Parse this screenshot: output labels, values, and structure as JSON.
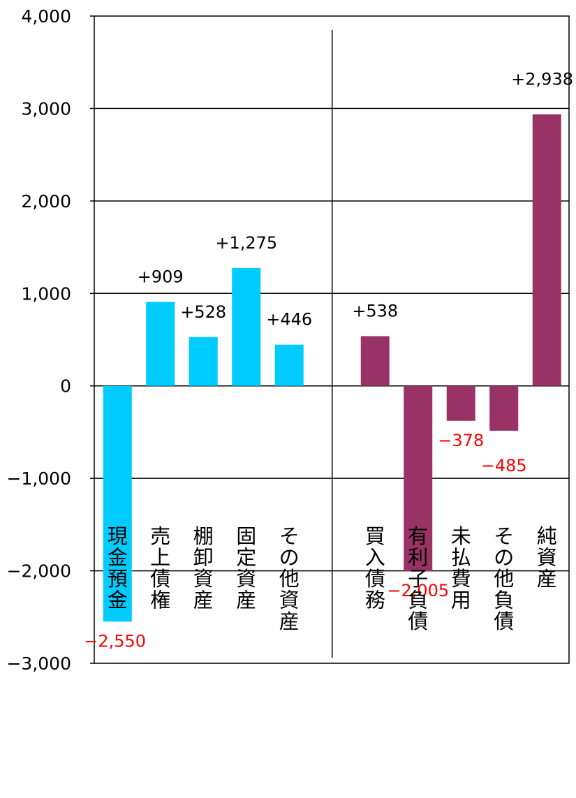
{
  "chart_data": {
    "type": "bar",
    "title": "",
    "xlabel": "",
    "ylabel": "",
    "ylim": [
      -3000,
      4000
    ],
    "yticks": [
      {
        "value": 4000,
        "label": "4,000"
      },
      {
        "value": 3000,
        "label": "3,000"
      },
      {
        "value": 2000,
        "label": "2,000"
      },
      {
        "value": 1000,
        "label": "1,000"
      },
      {
        "value": 0,
        "label": "0"
      },
      {
        "value": -1000,
        "label": "−1,000"
      },
      {
        "value": -2000,
        "label": "−2,000"
      },
      {
        "value": -3000,
        "label": "−3,000"
      }
    ],
    "grid": true,
    "legend": "none",
    "colors": {
      "assets": "#00CCFF",
      "liabilities": "#993366",
      "positive_label": "#000000",
      "negative_label": "#FF0000"
    },
    "categories": [
      "現金預金",
      "売上債権",
      "棚卸資産",
      "固定資産",
      "その他資産",
      "",
      "買入債務",
      "有利子負債",
      "未払費用",
      "その他負債",
      "純資産"
    ],
    "values": [
      -2550,
      909,
      528,
      1275,
      446,
      null,
      538,
      -2005,
      -378,
      -485,
      2938
    ],
    "labels": [
      "−2,550",
      "+909",
      "+528",
      "+1,275",
      "+446",
      "",
      "+538",
      "−2,005",
      "−378",
      "−485",
      "+2,938"
    ],
    "groups": [
      "assets",
      "assets",
      "assets",
      "assets",
      "assets",
      "",
      "liabilities",
      "liabilities",
      "liabilities",
      "liabilities",
      "liabilities"
    ]
  }
}
